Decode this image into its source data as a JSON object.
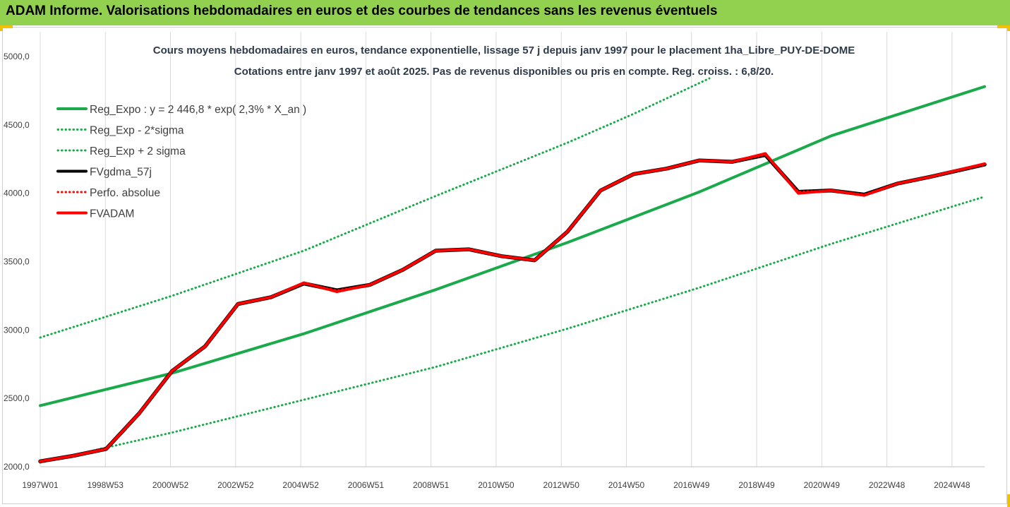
{
  "header": {
    "title": "ADAM Informe. Valorisations hebdomadaires en euros et des courbes de tendances sans les revenus éventuels"
  },
  "chart_data": {
    "type": "line",
    "title": "Cours moyens hebdomadaires en euros, tendance exponentielle, lissage 57 j depuis janv 1997 pour le placement 1ha_Libre_PUY-DE-DOME",
    "subtitle": "Cotations entre janv 1997 et août 2025.  Pas de revenus disponibles ou pris en compte. Reg. croiss. : 6,8/20.",
    "x_tick_labels": [
      "1997W01",
      "1998W53",
      "2000W52",
      "2002W52",
      "2004W52",
      "2006W51",
      "2008W51",
      "2010W50",
      "2012W50",
      "2014W50",
      "2016W49",
      "2018W49",
      "2020W49",
      "2022W48",
      "2024W48"
    ],
    "y_tick_labels": [
      "2000,0",
      "2500,0",
      "3000,0",
      "3500,0",
      "4000,0",
      "4500,0",
      "5000,0"
    ],
    "xlim": [
      1997.0,
      2025.65
    ],
    "ylim": [
      2000,
      5000
    ],
    "grid": "vertical",
    "legend_position": "top-left",
    "series": [
      {
        "name": "Reg_Expo : y = 2 446,8 * exp( 2,3% *  X_an )",
        "style": "solid",
        "color": "#1aaa4b",
        "x": [
          1997.0,
          2001.0,
          2005.0,
          2009.0,
          2013.0,
          2017.0,
          2021.0,
          2025.65
        ],
        "y": [
          2447,
          2684,
          2973,
          3295,
          3640,
          4010,
          4420,
          4780
        ]
      },
      {
        "name": "Reg_Exp - 2*sigma",
        "style": "dotted",
        "color": "#1aaa4b",
        "x": [
          1997.0,
          2001.0,
          2005.0,
          2009.0,
          2013.0,
          2017.0,
          2021.0,
          2025.65
        ],
        "y": [
          2030,
          2250,
          2490,
          2730,
          3010,
          3310,
          3630,
          3975
        ]
      },
      {
        "name": "Reg_Exp + 2 sigma",
        "style": "dotted",
        "color": "#1aaa4b",
        "x": [
          1997.0,
          2001.0,
          2005.0,
          2009.0,
          2013.0,
          2015.0,
          2017.3
        ],
        "y": [
          2945,
          3250,
          3580,
          3980,
          4370,
          4580,
          4840
        ]
      },
      {
        "name": "FVgdma_57j",
        "style": "solid",
        "color": "#000000",
        "x": [
          1997.0,
          1998.0,
          1999.0,
          2000.0,
          2001.0,
          2002.0,
          2003.0,
          2004.0,
          2005.0,
          2006.0,
          2007.0,
          2008.0,
          2009.0,
          2010.0,
          2011.0,
          2012.0,
          2013.0,
          2014.0,
          2015.0,
          2016.0,
          2017.0,
          2018.0,
          2019.0,
          2020.0,
          2021.0,
          2022.0,
          2023.0,
          2024.0,
          2025.65
        ],
        "y": [
          2040,
          2080,
          2130,
          2390,
          2700,
          2880,
          3190,
          3240,
          3340,
          3290,
          3330,
          3440,
          3580,
          3590,
          3540,
          3510,
          3720,
          4020,
          4140,
          4180,
          4240,
          4230,
          4280,
          4010,
          4020,
          3990,
          4070,
          4120,
          4210
        ]
      },
      {
        "name": "Perfo. absolue",
        "style": "dotted",
        "color": "#ff0000",
        "x": [
          1997.0,
          1998.0,
          1999.0,
          2000.0,
          2001.0,
          2002.0,
          2003.0,
          2004.0,
          2005.0,
          2006.0,
          2007.0,
          2008.0,
          2009.0,
          2010.0,
          2011.0,
          2012.0,
          2013.0,
          2014.0,
          2015.0,
          2016.0,
          2017.0,
          2018.0,
          2019.0,
          2020.0,
          2021.0,
          2022.0,
          2023.0,
          2024.0,
          2025.65
        ],
        "y": [
          2040,
          2080,
          2130,
          2390,
          2700,
          2880,
          3190,
          3240,
          3340,
          3290,
          3330,
          3440,
          3580,
          3590,
          3540,
          3510,
          3720,
          4020,
          4140,
          4180,
          4240,
          4230,
          4280,
          4010,
          4020,
          3990,
          4070,
          4120,
          4210
        ]
      },
      {
        "name": "FVADAM",
        "style": "solid",
        "color": "#ff0000",
        "x": [
          1997.0,
          1998.0,
          1999.0,
          2000.0,
          2001.0,
          2002.0,
          2003.0,
          2004.0,
          2005.0,
          2006.0,
          2007.0,
          2008.0,
          2009.0,
          2010.0,
          2011.0,
          2012.0,
          2013.0,
          2014.0,
          2015.0,
          2016.0,
          2017.0,
          2018.0,
          2019.0,
          2020.0,
          2021.0,
          2022.0,
          2023.0,
          2024.0,
          2025.65
        ],
        "y": [
          2040,
          2080,
          2130,
          2390,
          2700,
          2880,
          3190,
          3240,
          3345,
          3280,
          3330,
          3440,
          3580,
          3590,
          3540,
          3510,
          3720,
          4020,
          4140,
          4180,
          4240,
          4230,
          4290,
          4000,
          4020,
          3985,
          4070,
          4120,
          4215
        ]
      }
    ]
  }
}
